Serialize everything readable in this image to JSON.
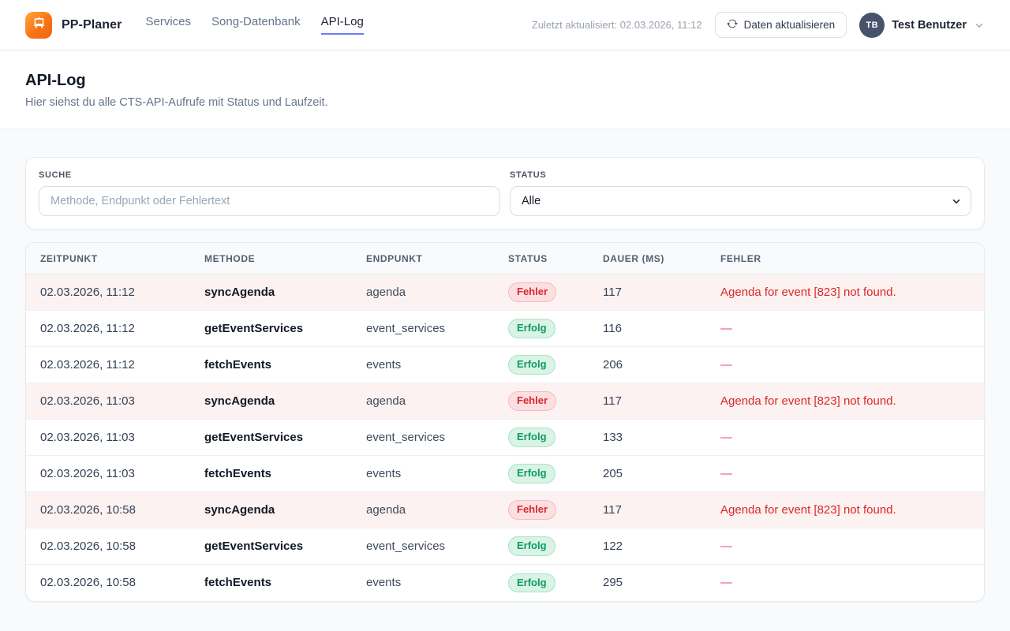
{
  "header": {
    "brand": "PP-Planer",
    "nav": [
      {
        "label": "Services",
        "active": false
      },
      {
        "label": "Song-Datenbank",
        "active": false
      },
      {
        "label": "API-Log",
        "active": true
      }
    ],
    "last_updated": "Zuletzt aktualisiert: 02.03.2026, 11:12",
    "refresh_label": "Daten aktualisieren",
    "user": {
      "initials": "TB",
      "name": "Test Benutzer"
    }
  },
  "page": {
    "title": "API-Log",
    "subtitle": "Hier siehst du alle CTS-API-Aufrufe mit Status und Laufzeit."
  },
  "filters": {
    "search_label": "SUCHE",
    "search_placeholder": "Methode, Endpunkt oder Fehlertext",
    "search_value": "",
    "status_label": "STATUS",
    "status_value": "Alle"
  },
  "table": {
    "columns": [
      "ZEITPUNKT",
      "METHODE",
      "ENDPUNKT",
      "STATUS",
      "DAUER (MS)",
      "FEHLER"
    ],
    "rows": [
      {
        "timestamp": "02.03.2026, 11:12",
        "method": "syncAgenda",
        "endpoint": "agenda",
        "status": "Fehler",
        "duration": "117",
        "error": "Agenda for event [823] not found."
      },
      {
        "timestamp": "02.03.2026, 11:12",
        "method": "getEventServices",
        "endpoint": "event_services",
        "status": "Erfolg",
        "duration": "116",
        "error": "—"
      },
      {
        "timestamp": "02.03.2026, 11:12",
        "method": "fetchEvents",
        "endpoint": "events",
        "status": "Erfolg",
        "duration": "206",
        "error": "—"
      },
      {
        "timestamp": "02.03.2026, 11:03",
        "method": "syncAgenda",
        "endpoint": "agenda",
        "status": "Fehler",
        "duration": "117",
        "error": "Agenda for event [823] not found."
      },
      {
        "timestamp": "02.03.2026, 11:03",
        "method": "getEventServices",
        "endpoint": "event_services",
        "status": "Erfolg",
        "duration": "133",
        "error": "—"
      },
      {
        "timestamp": "02.03.2026, 11:03",
        "method": "fetchEvents",
        "endpoint": "events",
        "status": "Erfolg",
        "duration": "205",
        "error": "—"
      },
      {
        "timestamp": "02.03.2026, 10:58",
        "method": "syncAgenda",
        "endpoint": "agenda",
        "status": "Fehler",
        "duration": "117",
        "error": "Agenda for event [823] not found."
      },
      {
        "timestamp": "02.03.2026, 10:58",
        "method": "getEventServices",
        "endpoint": "event_services",
        "status": "Erfolg",
        "duration": "122",
        "error": "—"
      },
      {
        "timestamp": "02.03.2026, 10:58",
        "method": "fetchEvents",
        "endpoint": "events",
        "status": "Erfolg",
        "duration": "295",
        "error": "—"
      }
    ]
  },
  "colors": {
    "accent_orange": "#f97316",
    "nav_active_underline": "#6b7cf6",
    "error_text": "#dc2626",
    "error_row_bg": "#fdf2f2",
    "success_text": "#0d9b66",
    "page_bg": "#f8fafc"
  }
}
